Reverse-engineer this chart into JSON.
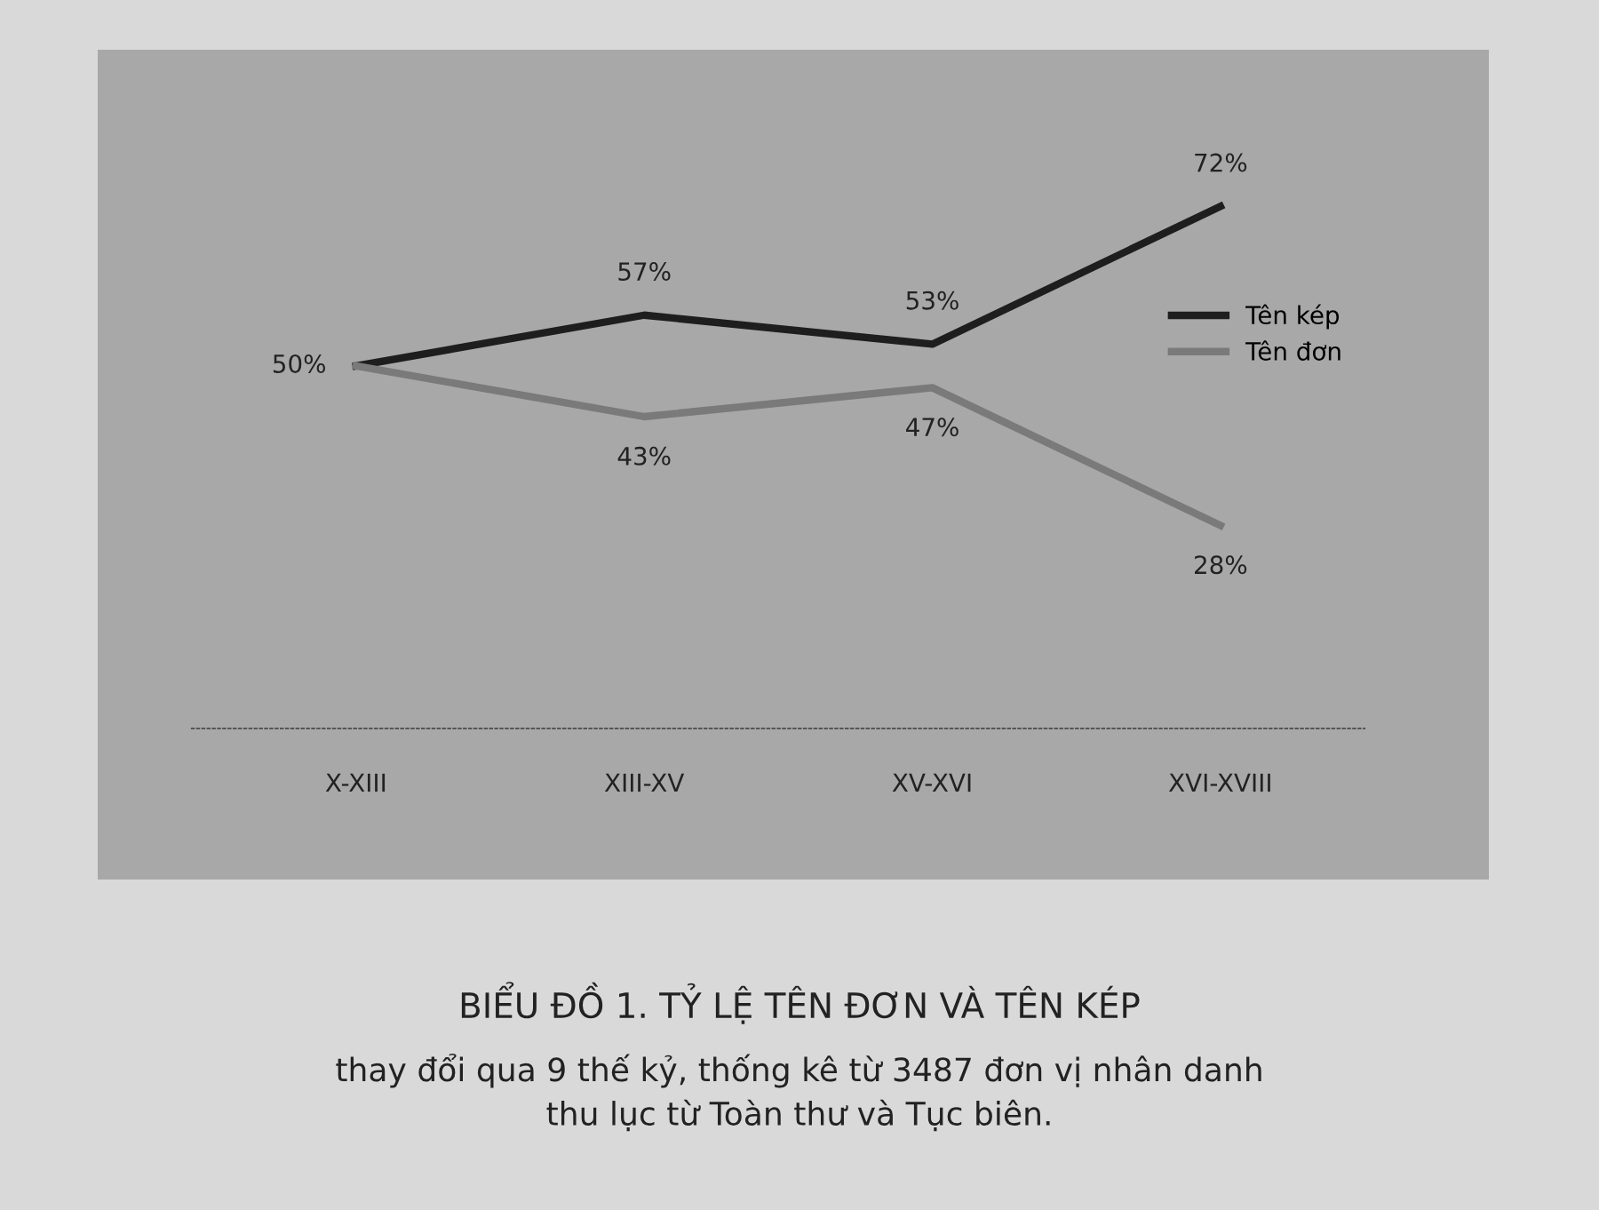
{
  "chart_data": {
    "type": "line",
    "title": "BIỂU ĐỒ 1. TỶ LỆ TÊN ĐƠN VÀ TÊN KÉP",
    "subtitle": "thay đổi qua 9 thế kỷ, thống kê từ 3487 đơn vị nhân danh\nthu lục từ Toàn thư và Tục biên.",
    "categories": [
      "X-XIII",
      "XIII-XV",
      "XV-XVI",
      "XVI-XVIII"
    ],
    "series": [
      {
        "name": "Tên kép",
        "color": "#1e1e1e",
        "values": [
          50,
          57,
          53,
          72
        ],
        "value_labels": [
          "50%",
          "57%",
          "53%",
          "72%"
        ]
      },
      {
        "name": "Tên đơn",
        "color": "#7a7a7a",
        "values": [
          50,
          43,
          47,
          28
        ],
        "value_labels": [
          null,
          "43%",
          "47%",
          "28%"
        ]
      }
    ],
    "legend": "right",
    "grid": false,
    "marker": "none",
    "line_style": "solid",
    "tick_labels": "x"
  }
}
